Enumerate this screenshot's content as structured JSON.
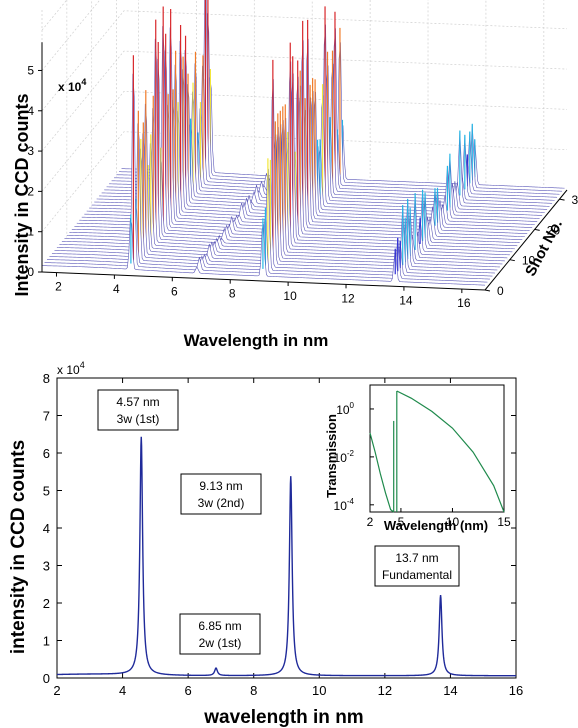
{
  "chart_data": [
    {
      "type": "waterfall-3d",
      "xlabel": "Wavelength in nm",
      "ylabel": "Shot No.",
      "zlabel": "Intensity in CCD counts",
      "z_multiplier": "x 10",
      "z_exponent": "4",
      "x_ticks": [
        "2",
        "4",
        "6",
        "8",
        "10",
        "12",
        "14",
        "16"
      ],
      "y_ticks": [
        "0",
        "10",
        "20",
        "30"
      ],
      "z_ticks": [
        "0",
        "1",
        "2",
        "3",
        "4",
        "5"
      ],
      "xlim": [
        1.5,
        16.8
      ],
      "ylim": [
        0,
        33
      ],
      "zlim": [
        0,
        6.5
      ],
      "shots": 33,
      "peaks_nm": [
        4.57,
        6.85,
        9.13,
        13.7
      ],
      "peak_heights_max": [
        5.6,
        0.4,
        5.3,
        1.8
      ],
      "colormap": [
        "#2b2bd6",
        "#22b8e6",
        "#f2e63a",
        "#f07a28",
        "#d8262a"
      ]
    },
    {
      "type": "line",
      "xlabel": "wavelength in nm",
      "ylabel": "intensity in CCD counts",
      "y_multiplier": "x 10",
      "y_exponent": "4",
      "xlim": [
        2,
        16
      ],
      "ylim": [
        0,
        8
      ],
      "x_ticks": [
        "2",
        "4",
        "6",
        "8",
        "10",
        "12",
        "14",
        "16"
      ],
      "y_ticks": [
        "0",
        "1",
        "2",
        "3",
        "4",
        "5",
        "6",
        "7",
        "8"
      ],
      "line_color": "#1f2a9a",
      "baseline": 0.06,
      "peaks": [
        {
          "x": 4.57,
          "y": 6.35,
          "width": 0.05
        },
        {
          "x": 6.85,
          "y": 0.2,
          "width": 0.05
        },
        {
          "x": 9.13,
          "y": 5.32,
          "width": 0.05
        },
        {
          "x": 13.7,
          "y": 2.15,
          "width": 0.05
        }
      ],
      "annotations": [
        {
          "lines": [
            "4.57 nm",
            "3w (1st)"
          ]
        },
        {
          "lines": [
            "6.85 nm",
            "2w (1st)"
          ]
        },
        {
          "lines": [
            "9.13 nm",
            "3w (2nd)"
          ]
        },
        {
          "lines": [
            "13.7 nm",
            "Fundamental"
          ]
        }
      ],
      "inset": {
        "type": "line",
        "xlabel": "Wavelength (nm)",
        "ylabel": "Transmission",
        "xlim": [
          2,
          15
        ],
        "y_log": true,
        "ylim_exp": [
          -4.3,
          1
        ],
        "x_ticks": [
          "2",
          "5",
          "10",
          "15"
        ],
        "y_tick_base": "10",
        "y_ticks_exp": [
          "0",
          "-2",
          "-4"
        ],
        "line_color": "#1f8a4c",
        "segments": [
          {
            "x": [
              2.0,
              2.5,
              3.0,
              3.5,
              4.0,
              4.3
            ],
            "log10_y": [
              -1.0,
              -1.8,
              -2.7,
              -3.5,
              -4.2,
              -4.3
            ]
          },
          {
            "x": [
              4.3,
              4.3
            ],
            "log10_y": [
              -4.3,
              -0.5
            ]
          },
          {
            "x": [
              4.6,
              4.6
            ],
            "log10_y": [
              -4.3,
              0.75
            ]
          },
          {
            "x": [
              4.6,
              6.0,
              8.0,
              10.0,
              12.0,
              14.0,
              15.0
            ],
            "log10_y": [
              0.75,
              0.45,
              -0.1,
              -0.8,
              -1.8,
              -3.2,
              -4.3
            ]
          }
        ]
      }
    }
  ]
}
